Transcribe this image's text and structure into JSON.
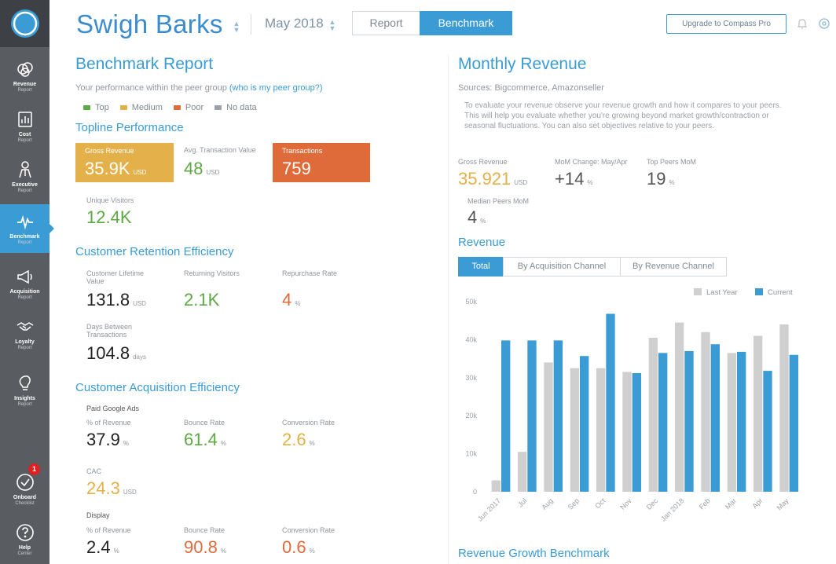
{
  "colors": {
    "accent": "#3a9bd5",
    "top": "#5da944",
    "medium": "#e4b04a",
    "poor": "#e06b3a",
    "nodata": "#9aa0a6"
  },
  "sidebar": {
    "items": [
      {
        "l1": "Revenue",
        "l2": "Report",
        "icon": "revenue-icon"
      },
      {
        "l1": "Cost",
        "l2": "Report",
        "icon": "cost-icon"
      },
      {
        "l1": "Executive",
        "l2": "Report",
        "icon": "executive-icon"
      },
      {
        "l1": "Benchmark",
        "l2": "Report",
        "icon": "benchmark-icon"
      },
      {
        "l1": "Acquisition",
        "l2": "Report",
        "icon": "megaphone-icon"
      },
      {
        "l1": "Loyalty",
        "l2": "Report",
        "icon": "handshake-icon"
      },
      {
        "l1": "Insights",
        "l2": "Report",
        "icon": "lightbulb-icon"
      },
      {
        "l1": "Onboard",
        "l2": "Checklist",
        "icon": "check-icon",
        "badge": "1"
      },
      {
        "l1": "Help",
        "l2": "Center",
        "icon": "help-icon"
      }
    ]
  },
  "header": {
    "store": "Swigh Barks",
    "month": "May 2018",
    "tab_report": "Report",
    "tab_benchmark": "Benchmark",
    "upgrade": "Upgrade to Compass Pro"
  },
  "left": {
    "title": "Benchmark Report",
    "subtitle": "Your performance within the peer group",
    "subtitle_link": "(who is my peer group?)",
    "legend": {
      "top": "Top",
      "medium": "Medium",
      "poor": "Poor",
      "nodata": "No data"
    },
    "topline": {
      "title": "Topline Performance",
      "gross_label": "Gross Revenue",
      "gross_value": "35.9K",
      "gross_unit": "USD",
      "atv_label": "Avg. Transaction Value",
      "atv_value": "48",
      "atv_unit": "USD",
      "trans_label": "Transactions",
      "trans_value": "759",
      "uv_label": "Unique Visitors",
      "uv_value": "12.4K"
    },
    "retention": {
      "title": "Customer Retention Efficiency",
      "clv_label": "Customer Lifetime Value",
      "clv_value": "131.8",
      "clv_unit": "USD",
      "rv_label": "Returning Visitors",
      "rv_value": "2.1K",
      "rr_label": "Repurchase Rate",
      "rr_value": "4",
      "rr_unit": "%",
      "dbt_label": "Days Between Transactions",
      "dbt_value": "104.8",
      "dbt_unit": "days"
    },
    "acquisition": {
      "title": "Customer Acquisition Efficiency",
      "google": "Paid Google Ads",
      "g_rev_label": "% of Revenue",
      "g_rev_value": "37.9",
      "g_rev_unit": "%",
      "g_br_label": "Bounce Rate",
      "g_br_value": "61.4",
      "g_br_unit": "%",
      "g_cr_label": "Conversion Rate",
      "g_cr_value": "2.6",
      "g_cr_unit": "%",
      "cac_label": "CAC",
      "cac_value": "24.3",
      "cac_unit": "USD",
      "display": "Display",
      "d_rev_label": "% of Revenue",
      "d_rev_value": "2.4",
      "d_rev_unit": "%",
      "d_br_label": "Bounce Rate",
      "d_br_value": "90.8",
      "d_br_unit": "%",
      "d_cr_label": "Conversion Rate",
      "d_cr_value": "0.6",
      "d_cr_unit": "%"
    }
  },
  "right": {
    "title": "Monthly Revenue",
    "sources": "Sources: Bigcommerce, Amazonseller",
    "description": "To evaluate your revenue observe your revenue growth and how it compares to your peers. This will help you evaluate whether you're growing beyond market growth/contraction or seasonal fluctuations. You can also set objectives relative to your peers.",
    "gross_label": "Gross Revenue",
    "gross_value": "35.921",
    "gross_unit": "USD",
    "mom_label": "MoM Change: May/Apr",
    "mom_value": "+14",
    "mom_unit": "%",
    "top_label": "Top Peers MoM",
    "top_value": "19",
    "top_unit": "%",
    "median_label": "Median Peers MoM",
    "median_value": "4",
    "median_unit": "%",
    "revenue_title": "Revenue",
    "tabs": [
      "Total",
      "By Acquisition Channel",
      "By Revenue Channel"
    ],
    "growth_title": "Revenue Growth Benchmark"
  },
  "chart_data": {
    "type": "bar",
    "categories": [
      "Jun 2017",
      "Jul",
      "Aug",
      "Sep",
      "Oct",
      "Nov",
      "Dec",
      "Jan 2018",
      "Feb",
      "Mar",
      "Apr",
      "May"
    ],
    "series": [
      {
        "name": "Last Year",
        "color": "#cfcfcf",
        "values": [
          3,
          10.5,
          34,
          32.5,
          32.5,
          31.5,
          40.5,
          44.5,
          42,
          36.5,
          41,
          44
        ]
      },
      {
        "name": "Current",
        "color": "#3a9bd5",
        "values": [
          39.8,
          39.8,
          39.8,
          35.7,
          46.8,
          31.2,
          36.5,
          37,
          38.8,
          36.8,
          31.8,
          36
        ]
      }
    ],
    "yticks": [
      "0",
      "10k",
      "20k",
      "30k",
      "40k",
      "50k"
    ],
    "ylim": [
      0,
      50
    ]
  }
}
